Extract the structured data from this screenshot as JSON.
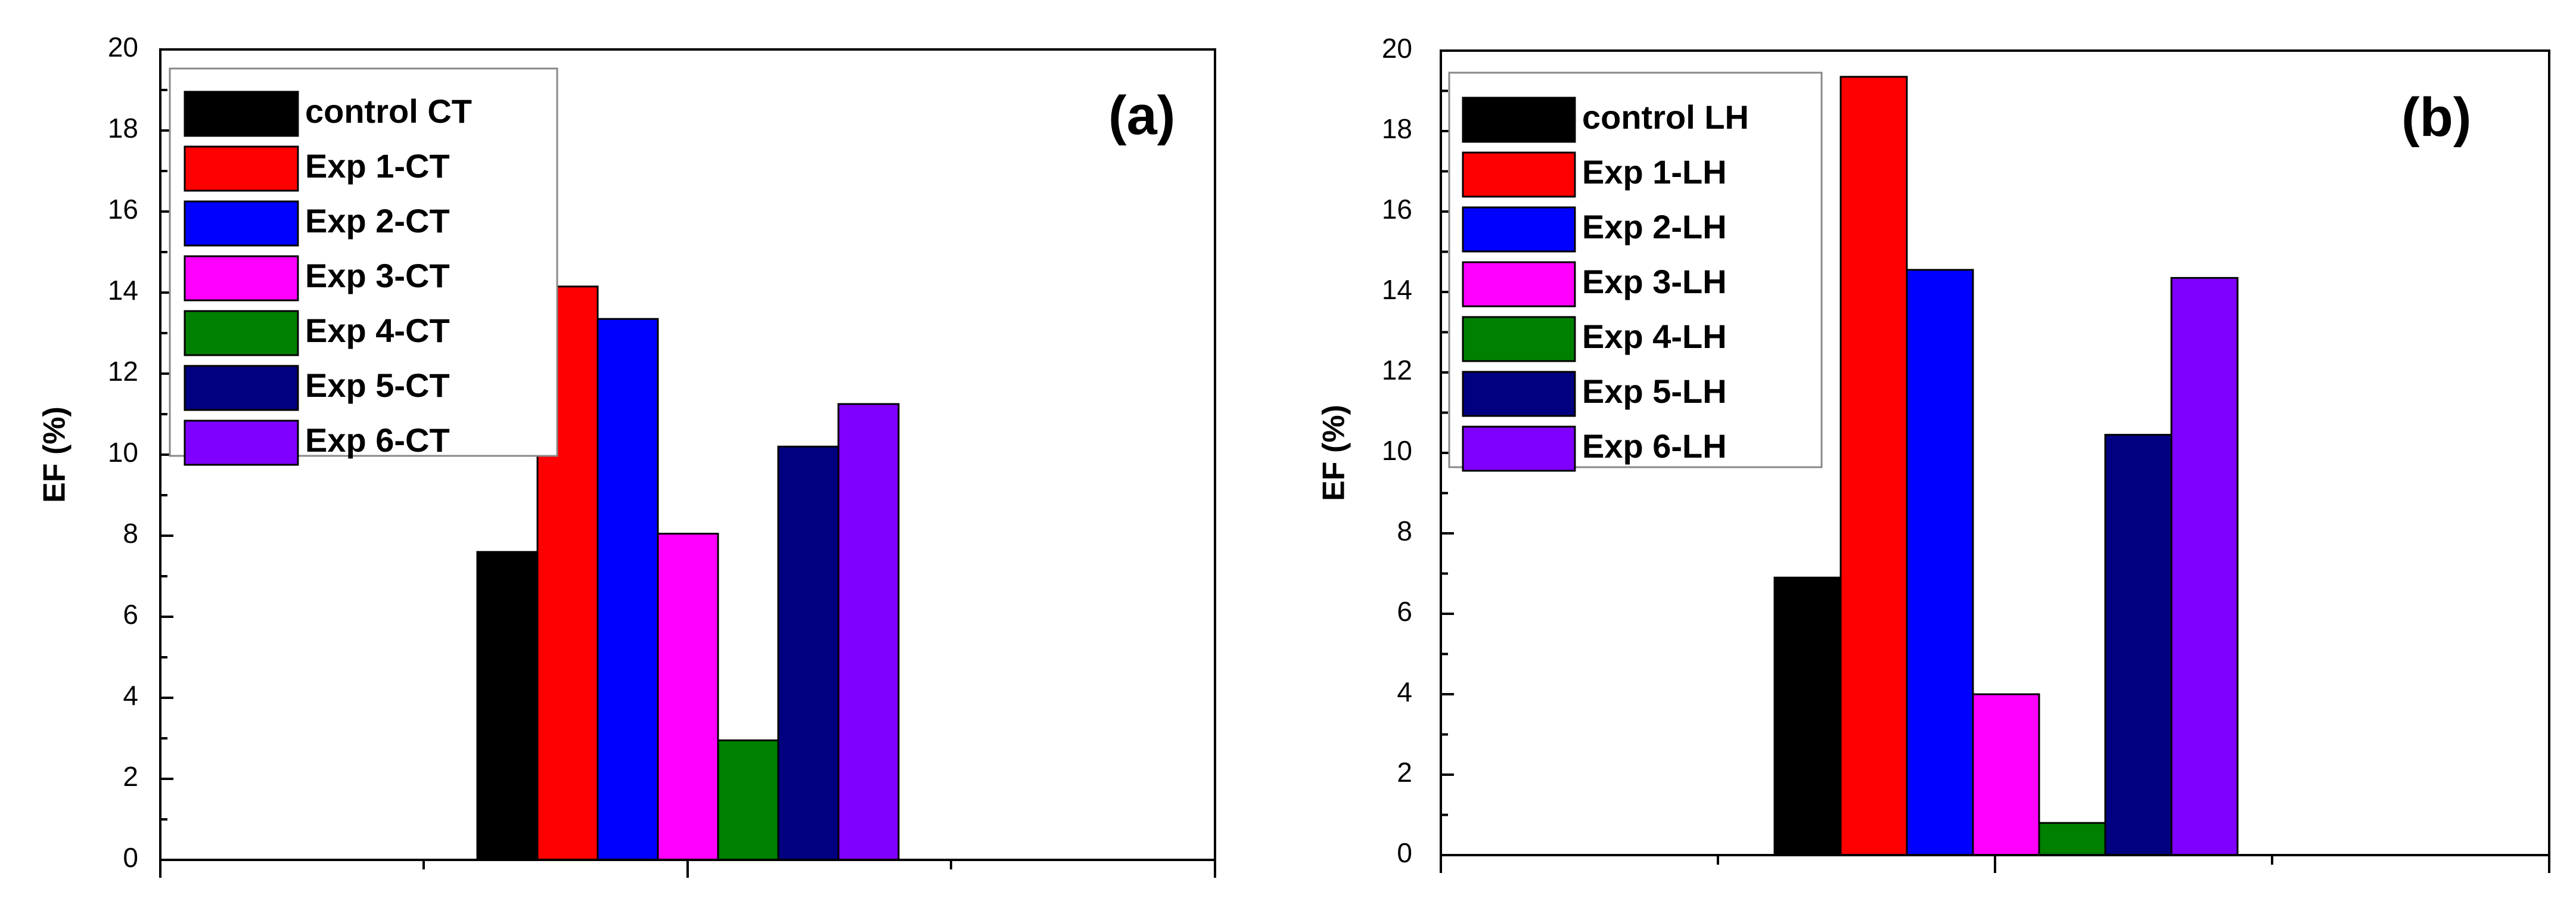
{
  "chart_data": [
    {
      "type": "bar",
      "panel_label": "(a)",
      "title": "",
      "xlabel": "",
      "ylabel": "EF (%)",
      "ylim": [
        0,
        20
      ],
      "yticks": [
        "0",
        "2",
        "4",
        "6",
        "8",
        "10",
        "12",
        "14",
        "16",
        "18",
        "20"
      ],
      "grid": false,
      "legend_position": "top-left",
      "series": [
        {
          "name": "control CT",
          "value": 7.6,
          "color": "#000000"
        },
        {
          "name": "Exp 1-CT",
          "value": 14.15,
          "color": "#ff0000"
        },
        {
          "name": "Exp 2-CT",
          "value": 13.35,
          "color": "#0000ff"
        },
        {
          "name": "Exp 3-CT",
          "value": 8.05,
          "color": "#ff00ff"
        },
        {
          "name": "Exp 4-CT",
          "value": 2.95,
          "color": "#008000"
        },
        {
          "name": "Exp 5-CT",
          "value": 10.2,
          "color": "#000080"
        },
        {
          "name": "Exp 6-CT",
          "value": 11.25,
          "color": "#8000ff"
        }
      ]
    },
    {
      "type": "bar",
      "panel_label": "(b)",
      "title": "",
      "xlabel": "",
      "ylabel": "EF (%)",
      "ylim": [
        0,
        20
      ],
      "yticks": [
        "0",
        "2",
        "4",
        "6",
        "8",
        "10",
        "12",
        "14",
        "16",
        "18",
        "20"
      ],
      "grid": false,
      "legend_position": "top-left",
      "series": [
        {
          "name": "control LH",
          "value": 6.9,
          "color": "#000000"
        },
        {
          "name": "Exp 1-LH",
          "value": 19.35,
          "color": "#ff0000"
        },
        {
          "name": "Exp 2-LH",
          "value": 14.55,
          "color": "#0000ff"
        },
        {
          "name": "Exp 3-LH",
          "value": 4.0,
          "color": "#ff00ff"
        },
        {
          "name": "Exp 4-LH",
          "value": 0.8,
          "color": "#008000"
        },
        {
          "name": "Exp 5-LH",
          "value": 10.45,
          "color": "#000080"
        },
        {
          "name": "Exp 6-LH",
          "value": 14.35,
          "color": "#8000ff"
        }
      ]
    }
  ]
}
